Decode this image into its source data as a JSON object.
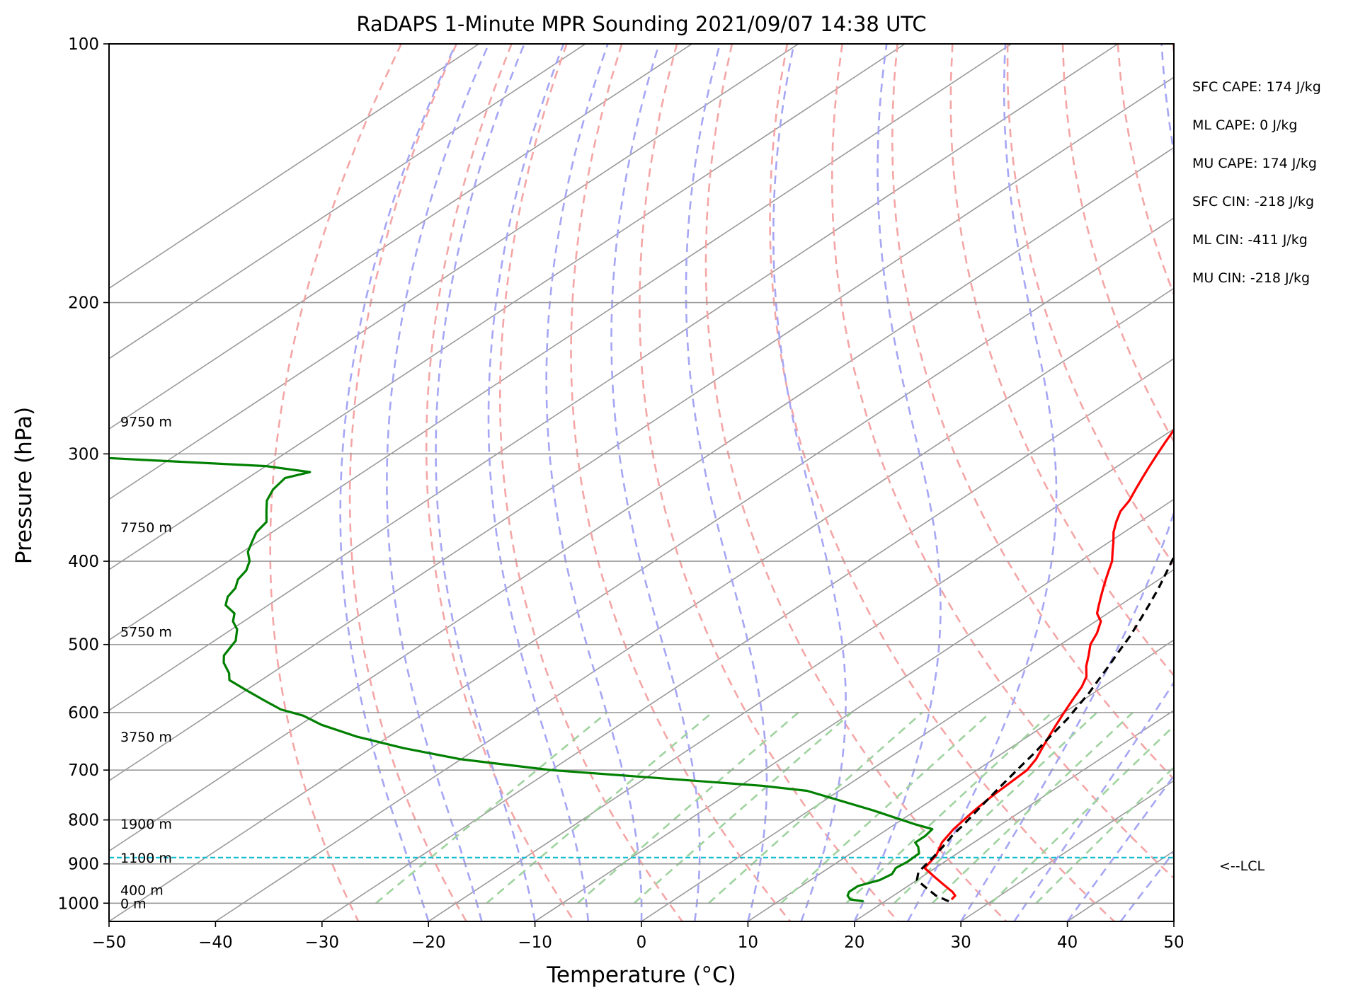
{
  "chart_data": {
    "type": "line",
    "title": "RaDAPS 1-Minute MPR Sounding 2021/09/07 14:38 UTC",
    "xlabel": "Temperature (°C)",
    "ylabel": "Pressure (hPa)",
    "xlim": [
      -50,
      50
    ],
    "ylim": [
      1050,
      100
    ],
    "y_scale": "log",
    "skew": true,
    "grid": true,
    "x_ticks": [
      "−50",
      "−40",
      "−30",
      "−20",
      "−10",
      "0",
      "10",
      "20",
      "30",
      "40",
      "50"
    ],
    "y_ticks": [
      "100",
      "200",
      "300",
      "400",
      "500",
      "600",
      "700",
      "800",
      "900",
      "1000"
    ],
    "x_tick_values": [
      -50,
      -40,
      -30,
      -20,
      -10,
      0,
      10,
      20,
      30,
      40,
      50
    ],
    "y_tick_values": [
      100,
      200,
      300,
      400,
      500,
      600,
      700,
      800,
      900,
      1000
    ],
    "height_labels": [
      {
        "label": "9750 m",
        "p": 275
      },
      {
        "label": "7750 m",
        "p": 365
      },
      {
        "label": "5750 m",
        "p": 483
      },
      {
        "label": "3750 m",
        "p": 640
      },
      {
        "label": "1900 m",
        "p": 808
      },
      {
        "label": "1100 m",
        "p": 885
      },
      {
        "label": "400 m",
        "p": 965
      },
      {
        "label": "0 m",
        "p": 1000
      }
    ],
    "annotations": [
      "SFC CAPE: 174 J/kg",
      "ML CAPE: 0 J/kg",
      "MU CAPE: 174 J/kg",
      "SFC CIN: -218 J/kg",
      "ML CIN: -411 J/kg",
      "MU CIN: -218 J/kg"
    ],
    "lcl": {
      "label": "<--LCL",
      "p": 885
    },
    "series": [
      {
        "role": "temperature",
        "color": "#ff0000",
        "style": "solid",
        "points": [
          [
            26,
            990
          ],
          [
            25.8,
            980
          ],
          [
            25,
            970
          ],
          [
            23,
            950
          ],
          [
            21,
            930
          ],
          [
            19,
            910
          ],
          [
            18.3,
            880
          ],
          [
            17,
            850
          ],
          [
            16.2,
            820
          ],
          [
            15.5,
            780
          ],
          [
            15.1,
            750
          ],
          [
            14.7,
            700
          ],
          [
            14,
            680
          ],
          [
            13,
            660
          ],
          [
            12,
            640
          ],
          [
            11,
            620
          ],
          [
            10,
            600
          ],
          [
            9,
            580
          ],
          [
            8,
            560
          ],
          [
            7,
            545
          ],
          [
            5.5,
            530
          ],
          [
            4.2,
            515
          ],
          [
            2.8,
            500
          ],
          [
            1.8,
            485
          ],
          [
            0.5,
            470
          ],
          [
            -1,
            460
          ],
          [
            -2,
            450
          ],
          [
            -3,
            440
          ],
          [
            -4,
            430
          ],
          [
            -5,
            420
          ],
          [
            -6,
            410
          ],
          [
            -7,
            400
          ],
          [
            -8.3,
            390
          ],
          [
            -9.6,
            380
          ],
          [
            -11,
            370
          ],
          [
            -12.2,
            360
          ],
          [
            -13.3,
            350
          ],
          [
            -14,
            340
          ],
          [
            -15,
            330
          ],
          [
            -16,
            320
          ],
          [
            -17,
            310
          ],
          [
            -18,
            300
          ],
          [
            -19,
            290
          ],
          [
            -20,
            280
          ],
          [
            -21,
            275
          ]
        ]
      },
      {
        "role": "dewpoint",
        "color": "#008000",
        "style": "solid",
        "points": [
          [
            18,
            995
          ],
          [
            16.5,
            990
          ],
          [
            15.7,
            980
          ],
          [
            15.3,
            970
          ],
          [
            15.3,
            955
          ],
          [
            16.5,
            940
          ],
          [
            16.8,
            925
          ],
          [
            16.3,
            910
          ],
          [
            16.5,
            895
          ],
          [
            16.4,
            875
          ],
          [
            15.4,
            860
          ],
          [
            14.5,
            850
          ],
          [
            14.5,
            835
          ],
          [
            14.2,
            820
          ],
          [
            12,
            810
          ],
          [
            6,
            780
          ],
          [
            -3,
            740
          ],
          [
            -8,
            730
          ],
          [
            -30,
            700
          ],
          [
            -40,
            680
          ],
          [
            -47,
            660
          ],
          [
            -53,
            640
          ],
          [
            -58,
            620
          ],
          [
            -61,
            605
          ],
          [
            -64,
            595
          ],
          [
            -67,
            580
          ],
          [
            -70,
            565
          ],
          [
            -73,
            550
          ],
          [
            -74,
            540
          ],
          [
            -76,
            525
          ],
          [
            -77,
            515
          ],
          [
            -77.5,
            505
          ],
          [
            -78,
            495
          ],
          [
            -79.5,
            480
          ],
          [
            -81,
            470
          ],
          [
            -82,
            460
          ],
          [
            -84,
            450
          ],
          [
            -85,
            440
          ],
          [
            -85.5,
            430
          ],
          [
            -86.5,
            420
          ],
          [
            -87,
            410
          ],
          [
            -88,
            400
          ],
          [
            -89.5,
            390
          ],
          [
            -90.5,
            380
          ],
          [
            -91.5,
            370
          ],
          [
            -92,
            360
          ],
          [
            -93.5,
            350
          ],
          [
            -95,
            340
          ],
          [
            -96,
            330
          ],
          [
            -96.5,
            320
          ],
          [
            -95,
            315
          ],
          [
            -100,
            310
          ],
          [
            -112,
            305
          ],
          [
            -124,
            300
          ],
          [
            -134,
            296
          ],
          [
            -136,
            295
          ]
        ]
      },
      {
        "role": "parcel",
        "color": "#000000",
        "style": "dashed",
        "points": [
          [
            26,
            995
          ],
          [
            24,
            980
          ],
          [
            22,
            960
          ],
          [
            20,
            940
          ],
          [
            19,
            920
          ],
          [
            18.3,
            885
          ],
          [
            17.7,
            860
          ],
          [
            17,
            835
          ],
          [
            16.5,
            810
          ],
          [
            16,
            790
          ],
          [
            15.5,
            770
          ],
          [
            15,
            750
          ],
          [
            14.5,
            730
          ],
          [
            14,
            710
          ],
          [
            13.5,
            690
          ],
          [
            13,
            670
          ],
          [
            12.4,
            650
          ],
          [
            11.8,
            630
          ],
          [
            11.2,
            610
          ],
          [
            10.4,
            590
          ],
          [
            9.6,
            570
          ],
          [
            8.6,
            550
          ],
          [
            7.6,
            530
          ],
          [
            6.5,
            510
          ],
          [
            5.4,
            490
          ],
          [
            4.1,
            470
          ],
          [
            2.7,
            450
          ],
          [
            1.2,
            430
          ],
          [
            -0.5,
            410
          ],
          [
            -2.3,
            390
          ],
          [
            -4.3,
            370
          ],
          [
            -6.5,
            350
          ],
          [
            -9,
            330
          ],
          [
            -11.8,
            310
          ],
          [
            -14.8,
            290
          ],
          [
            -16.5,
            280
          ],
          [
            -18,
            272
          ]
        ]
      }
    ],
    "guide_lines": {
      "isotherms": "grey solid",
      "dry_adiabats": "red dashed",
      "moist_adiabats": "blue dashed",
      "mixing_ratio": "green dashed",
      "lcl_line": "cyan dashed"
    },
    "colors": {
      "temperature": "#ff0000",
      "dewpoint": "#008000",
      "parcel": "#000000",
      "isotherm": "#9a9a9a",
      "dry_adiabat": "#f4a6a6",
      "moist_adiabat": "#a6a6f4",
      "mixing_ratio": "#9fd39f",
      "lcl": "#17becf"
    }
  }
}
